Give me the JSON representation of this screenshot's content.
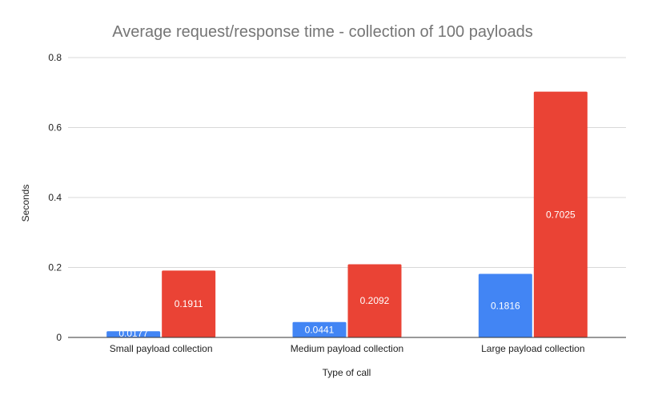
{
  "chart_data": {
    "type": "bar",
    "title": "Average request/response time - collection of 100 payloads",
    "xlabel": "Type of call",
    "ylabel": "Seconds",
    "categories": [
      "Small payload collection",
      "Medium payload collection",
      "Large payload collection"
    ],
    "series": [
      {
        "values": [
          0.0177,
          0.0441,
          0.1816
        ],
        "labels": [
          "0.0177",
          "0.0441",
          "0.1816"
        ],
        "color": "#4285f4"
      },
      {
        "values": [
          0.1911,
          0.2092,
          0.7025
        ],
        "labels": [
          "0.1911",
          "0.2092",
          "0.7025"
        ],
        "color": "#ea4335"
      }
    ],
    "ylim": [
      0,
      0.8
    ],
    "yticks": [
      0,
      0.2,
      0.4,
      0.6,
      0.8
    ],
    "ytick_labels": [
      "0",
      "0.2",
      "0.4",
      "0.6",
      "0.8"
    ],
    "grid": true,
    "legend": "none"
  }
}
